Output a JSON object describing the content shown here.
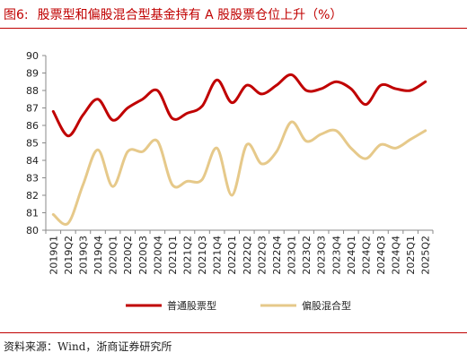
{
  "figure_label": "图6:",
  "source": "资料来源：Wind，浙商证券研究所",
  "chart_data": {
    "type": "line",
    "title": "股票型和偏股混合型基金持有 A 股股票仓位上升（%）",
    "xlabel": "",
    "ylabel": "",
    "ylim": [
      80,
      90
    ],
    "yticks": [
      80,
      81,
      82,
      83,
      84,
      85,
      86,
      87,
      88,
      89,
      90
    ],
    "grid": false,
    "legend_position": "bottom",
    "x": [
      "2019Q1",
      "2019Q2",
      "2019Q3",
      "2019Q4",
      "2020Q1",
      "2020Q2",
      "2020Q3",
      "2020Q4",
      "2021Q1",
      "2021Q2",
      "2021Q3",
      "2021Q4",
      "2022Q1",
      "2022Q2",
      "2022Q3",
      "2022Q4",
      "2023Q1",
      "2023Q2",
      "2023Q3",
      "2023Q4",
      "2024Q1",
      "2024Q2",
      "2024Q3",
      "2024Q4",
      "2025Q1",
      "2025Q2"
    ],
    "series": [
      {
        "name": "普通股票型",
        "color": "#c00000",
        "values": [
          86.8,
          85.4,
          86.6,
          87.5,
          86.3,
          87.0,
          87.5,
          88.0,
          86.4,
          86.7,
          87.1,
          88.6,
          87.3,
          88.3,
          87.8,
          88.3,
          88.9,
          88.0,
          88.1,
          88.5,
          88.1,
          87.2,
          88.3,
          88.1,
          88.0,
          88.5
        ]
      },
      {
        "name": "偏股混合型",
        "color": "#e6c98a",
        "values": [
          80.9,
          80.4,
          82.6,
          84.6,
          82.5,
          84.5,
          84.5,
          85.1,
          82.6,
          82.8,
          82.9,
          84.7,
          82.0,
          84.9,
          83.8,
          84.5,
          86.2,
          85.1,
          85.5,
          85.7,
          84.7,
          84.1,
          84.9,
          84.7,
          85.2,
          85.7
        ]
      }
    ]
  }
}
